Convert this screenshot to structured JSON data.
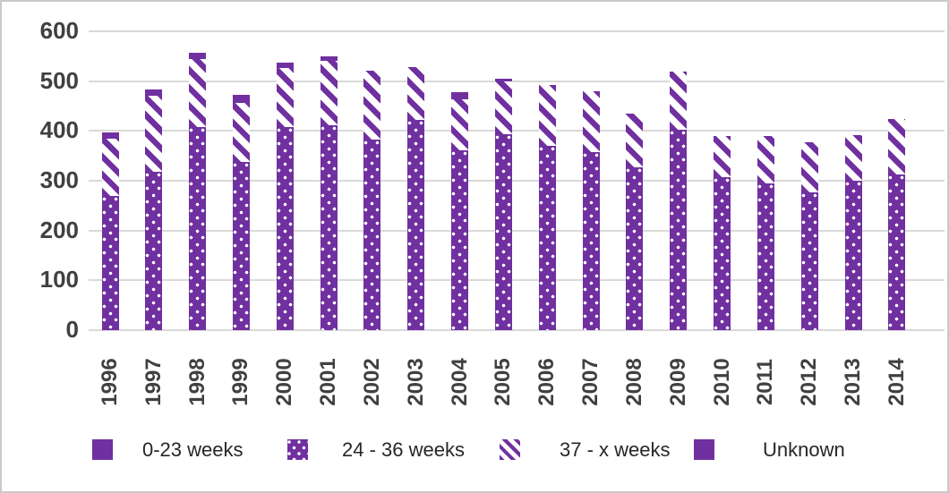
{
  "chart_data": {
    "type": "bar",
    "stacked": true,
    "title": "",
    "xlabel": "",
    "ylabel": "",
    "categories": [
      "1996",
      "1997",
      "1998",
      "1999",
      "2000",
      "2001",
      "2002",
      "2003",
      "2004",
      "2005",
      "2006",
      "2007",
      "2008",
      "2009",
      "2010",
      "2011",
      "2012",
      "2013",
      "2014"
    ],
    "series": [
      {
        "name": "0-23 weeks",
        "pattern": "solid",
        "values": [
          0,
          0,
          0,
          0,
          0,
          0,
          0,
          0,
          0,
          0,
          0,
          0,
          0,
          0,
          0,
          0,
          0,
          0,
          0
        ]
      },
      {
        "name": "24 - 36 weeks",
        "pattern": "dots",
        "values": [
          270,
          318,
          408,
          337,
          407,
          412,
          382,
          422,
          361,
          394,
          370,
          358,
          327,
          403,
          307,
          295,
          277,
          300,
          312
        ]
      },
      {
        "name": "37 - x weeks",
        "pattern": "stripes",
        "values": [
          115,
          152,
          137,
          120,
          119,
          128,
          139,
          106,
          103,
          106,
          122,
          122,
          107,
          117,
          83,
          95,
          100,
          92,
          112
        ]
      },
      {
        "name": "Unknown",
        "pattern": "solid",
        "values": [
          12,
          13,
          12,
          15,
          12,
          10,
          0,
          0,
          14,
          5,
          0,
          0,
          0,
          0,
          0,
          0,
          0,
          0,
          0
        ]
      }
    ],
    "ylim": [
      0,
      600
    ],
    "yticks": [
      "0",
      "100",
      "200",
      "300",
      "400",
      "500",
      "600"
    ],
    "grid": true,
    "legend_position": "bottom",
    "colors": {
      "bar_purple": "#7030A0",
      "gridline": "#d9d9d9",
      "axis_text": "#404040",
      "legend_text": "#262626"
    }
  },
  "legend": {
    "items": [
      {
        "label": "0-23 weeks",
        "pattern": "solid"
      },
      {
        "label": "24 - 36 weeks",
        "pattern": "dots"
      },
      {
        "label": "37 - x weeks",
        "pattern": "stripes"
      },
      {
        "label": "Unknown",
        "pattern": "solid"
      }
    ]
  }
}
